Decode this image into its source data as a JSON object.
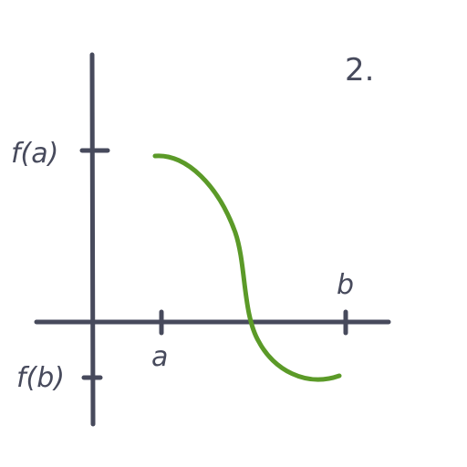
{
  "problem": {
    "number": "2."
  },
  "labels": {
    "x_left": "a",
    "x_right": "b",
    "y_top": "f(a)",
    "y_bottom": "f(b)"
  },
  "colors": {
    "axes": "#474a5c",
    "curve": "#5b9a28",
    "background": "#ffffff"
  }
}
